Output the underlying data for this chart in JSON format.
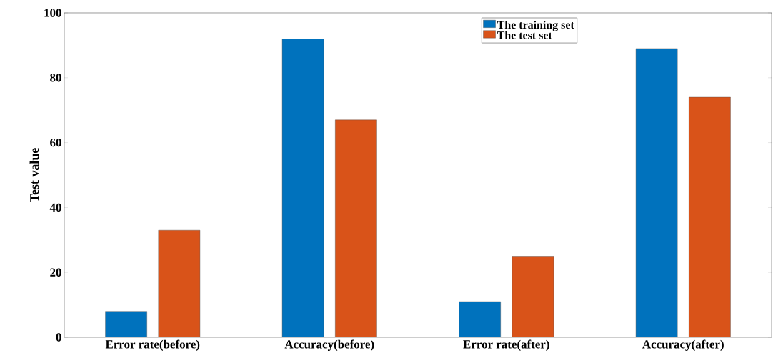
{
  "chart_data": {
    "type": "bar",
    "ylabel": "Test value",
    "categories": [
      "Error rate(before)",
      "Accuracy(before)",
      "Error rate(after)",
      "Accuracy(after)"
    ],
    "series": [
      {
        "name": "The training set",
        "color": "#0072bd",
        "values": [
          8,
          92,
          11,
          89
        ]
      },
      {
        "name": "The test set",
        "color": "#d95319",
        "values": [
          33,
          67,
          25,
          74
        ]
      }
    ],
    "ylim": [
      0,
      100
    ],
    "yticks": [
      0,
      20,
      40,
      60,
      80,
      100
    ],
    "grid": false,
    "legend": "top right"
  }
}
